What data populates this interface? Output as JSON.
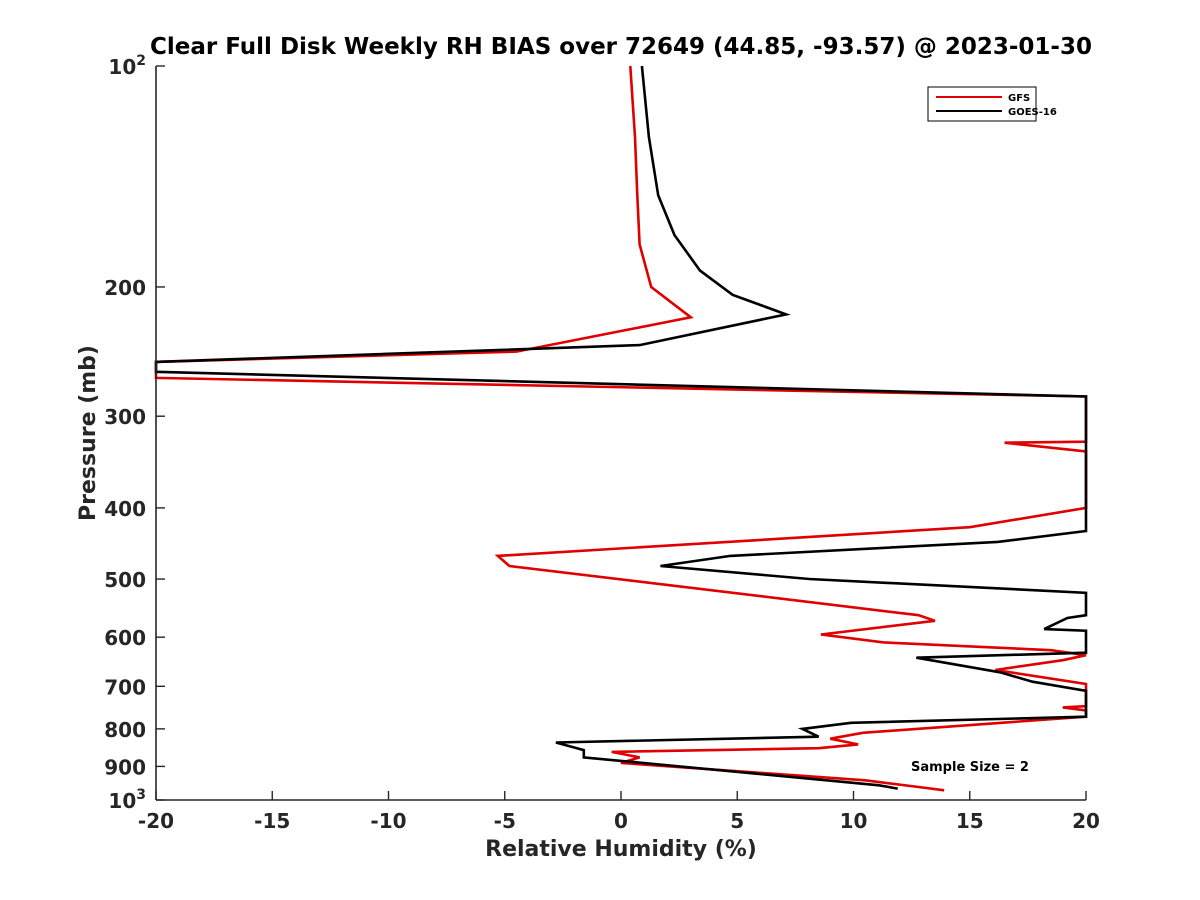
{
  "chart_data": {
    "type": "line",
    "title": "Clear Full Disk Weekly RH BIAS over 72649 (44.85, -93.57) @ 2023-01-30",
    "xlabel": "Relative Humidity (%)",
    "ylabel": "Pressure (mb)",
    "xlim": [
      -20,
      20
    ],
    "ylim": [
      100,
      1000
    ],
    "y_scale": "log",
    "y_reversed": true,
    "grid": false,
    "legend_position": "top-right",
    "xticks": [
      "-20",
      "-15",
      "-10",
      "-5",
      "0",
      "5",
      "10",
      "15",
      "20"
    ],
    "yticks": [
      {
        "value": 100,
        "base": "10",
        "exp": "2"
      },
      {
        "value": 200,
        "label": "200"
      },
      {
        "value": 300,
        "label": "300"
      },
      {
        "value": 400,
        "label": "400"
      },
      {
        "value": 500,
        "label": "500"
      },
      {
        "value": 600,
        "label": "600"
      },
      {
        "value": 700,
        "label": "700"
      },
      {
        "value": 800,
        "label": "800"
      },
      {
        "value": 900,
        "label": "900"
      },
      {
        "value": 1000,
        "base": "10",
        "exp": "3"
      }
    ],
    "series": [
      {
        "name": "GFS",
        "color": "#e00000",
        "points": [
          [
            0.4,
            100
          ],
          [
            0.6,
            125
          ],
          [
            0.7,
            150
          ],
          [
            0.8,
            175
          ],
          [
            1.3,
            200
          ],
          [
            3.0,
            220
          ],
          [
            -4.5,
            245
          ],
          [
            -20,
            253
          ],
          [
            -20,
            266
          ],
          [
            20,
            282
          ],
          [
            20,
            325
          ],
          [
            16.5,
            326
          ],
          [
            20,
            335
          ],
          [
            20,
            400
          ],
          [
            15,
            425
          ],
          [
            -5.3,
            465
          ],
          [
            -4.8,
            480
          ],
          [
            12.8,
            560
          ],
          [
            13.5,
            570
          ],
          [
            8.6,
            595
          ],
          [
            11.3,
            610
          ],
          [
            18.5,
            625
          ],
          [
            20,
            635
          ],
          [
            19,
            645
          ],
          [
            16.1,
            665
          ],
          [
            20,
            695
          ],
          [
            20,
            745
          ],
          [
            19,
            748
          ],
          [
            20,
            755
          ],
          [
            20,
            760
          ],
          [
            20,
            770
          ],
          [
            10.4,
            810
          ],
          [
            9.0,
            825
          ],
          [
            10.2,
            840
          ],
          [
            8.5,
            850
          ],
          [
            -0.4,
            860
          ],
          [
            0.8,
            875
          ],
          [
            0.0,
            890
          ],
          [
            10.5,
            940
          ],
          [
            12.8,
            960
          ],
          [
            13.9,
            970
          ]
        ]
      },
      {
        "name": "GOES-16",
        "color": "#000000",
        "points": [
          [
            0.9,
            100
          ],
          [
            1.2,
            125
          ],
          [
            1.6,
            150
          ],
          [
            2.3,
            170
          ],
          [
            3.4,
            190
          ],
          [
            4.8,
            205
          ],
          [
            7.1,
            218
          ],
          [
            0.8,
            240
          ],
          [
            -20,
            253
          ],
          [
            -20,
            261
          ],
          [
            20,
            282
          ],
          [
            20,
            430
          ],
          [
            16.2,
            445
          ],
          [
            4.7,
            465
          ],
          [
            1.7,
            480
          ],
          [
            8.1,
            500
          ],
          [
            20,
            522
          ],
          [
            20,
            560
          ],
          [
            19.2,
            565
          ],
          [
            18.2,
            585
          ],
          [
            20,
            588
          ],
          [
            20,
            630
          ],
          [
            12.7,
            640
          ],
          [
            16.3,
            670
          ],
          [
            17.7,
            690
          ],
          [
            20,
            710
          ],
          [
            20,
            770
          ],
          [
            9.9,
            785
          ],
          [
            7.8,
            800
          ],
          [
            8.5,
            820
          ],
          [
            -2.8,
            835
          ],
          [
            -1.6,
            855
          ],
          [
            -1.6,
            875
          ],
          [
            11.1,
            955
          ],
          [
            11.9,
            965
          ]
        ]
      }
    ],
    "annotations": [
      {
        "text": "Sample Size = 2"
      }
    ]
  }
}
